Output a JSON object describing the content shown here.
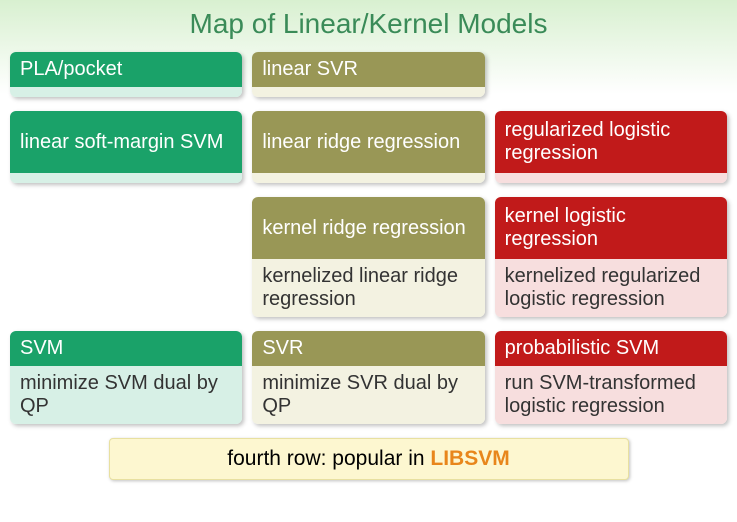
{
  "title": "Map of Linear/Kernel Models",
  "colors": {
    "green_header": "#1aa269",
    "green_body": "#d7f0e6",
    "olive_header": "#999756",
    "olive_body": "#f3f2e1",
    "red_header": "#c11a1a",
    "red_body": "#f7dede",
    "body_text": "#333333",
    "footer_bg": "#fdf7d0",
    "footer_border": "#e8e0a0",
    "libsvm": "#e8861b"
  },
  "rows": [
    [
      {
        "header": "PLA/pocket",
        "body": "",
        "color": "green",
        "body_style": "thin"
      },
      {
        "header": "linear SVR",
        "body": "",
        "color": "olive",
        "body_style": "thin"
      },
      null
    ],
    [
      {
        "header": "linear soft-margin SVM",
        "body": "",
        "color": "green",
        "header_style": "tall",
        "body_style": "thin"
      },
      {
        "header": "linear ridge regression",
        "body": "",
        "color": "olive",
        "header_style": "tall",
        "body_style": "thin"
      },
      {
        "header": "regularized logistic regression",
        "body": "",
        "color": "red",
        "header_style": "tall",
        "body_style": "thin"
      }
    ],
    [
      null,
      {
        "header": "kernel ridge regression",
        "body": "kernelized linear ridge regression",
        "color": "olive",
        "header_style": "tall",
        "body_style": "tall"
      },
      {
        "header": "kernel logistic regression",
        "body": "kernelized regularized logistic regression",
        "color": "red",
        "header_style": "tall",
        "body_style": "tall"
      }
    ],
    [
      {
        "header": "SVM",
        "body": "minimize SVM dual by QP",
        "color": "green",
        "body_style": "tall"
      },
      {
        "header": "SVR",
        "body": "minimize SVR dual by QP",
        "color": "olive",
        "body_style": "tall"
      },
      {
        "header": "probabilistic SVM",
        "body": "run SVM-transformed logistic regression",
        "color": "red",
        "body_style": "tall"
      }
    ]
  ],
  "footer": {
    "prefix": "fourth row: popular in ",
    "lib": "LIBSVM"
  }
}
